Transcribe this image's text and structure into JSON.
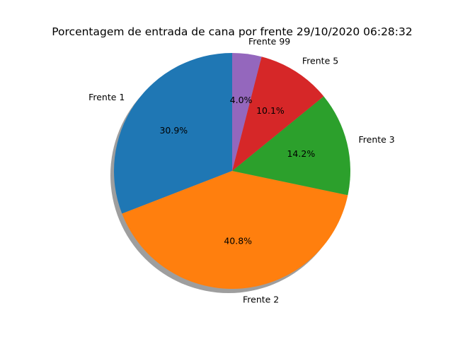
{
  "chart_data": {
    "type": "pie",
    "title": "Porcentagem de entrada de cana por frente 29/10/2020 06:28:32",
    "slices": [
      {
        "label": "Frente 1",
        "value": 30.9,
        "pct_label": "30.9%",
        "color": "#1f77b4"
      },
      {
        "label": "Frente 2",
        "value": 40.8,
        "pct_label": "40.8%",
        "color": "#ff7f0e"
      },
      {
        "label": "Frente 3",
        "value": 14.2,
        "pct_label": "14.2%",
        "color": "#2ca02c"
      },
      {
        "label": "Frente 5",
        "value": 10.1,
        "pct_label": "10.1%",
        "color": "#d62728"
      },
      {
        "label": "Frente 99",
        "value": 4.0,
        "pct_label": "4.0%",
        "color": "#9467bd"
      }
    ],
    "start_angle_deg": 90,
    "direction": "counterclockwise",
    "shadow": true
  }
}
